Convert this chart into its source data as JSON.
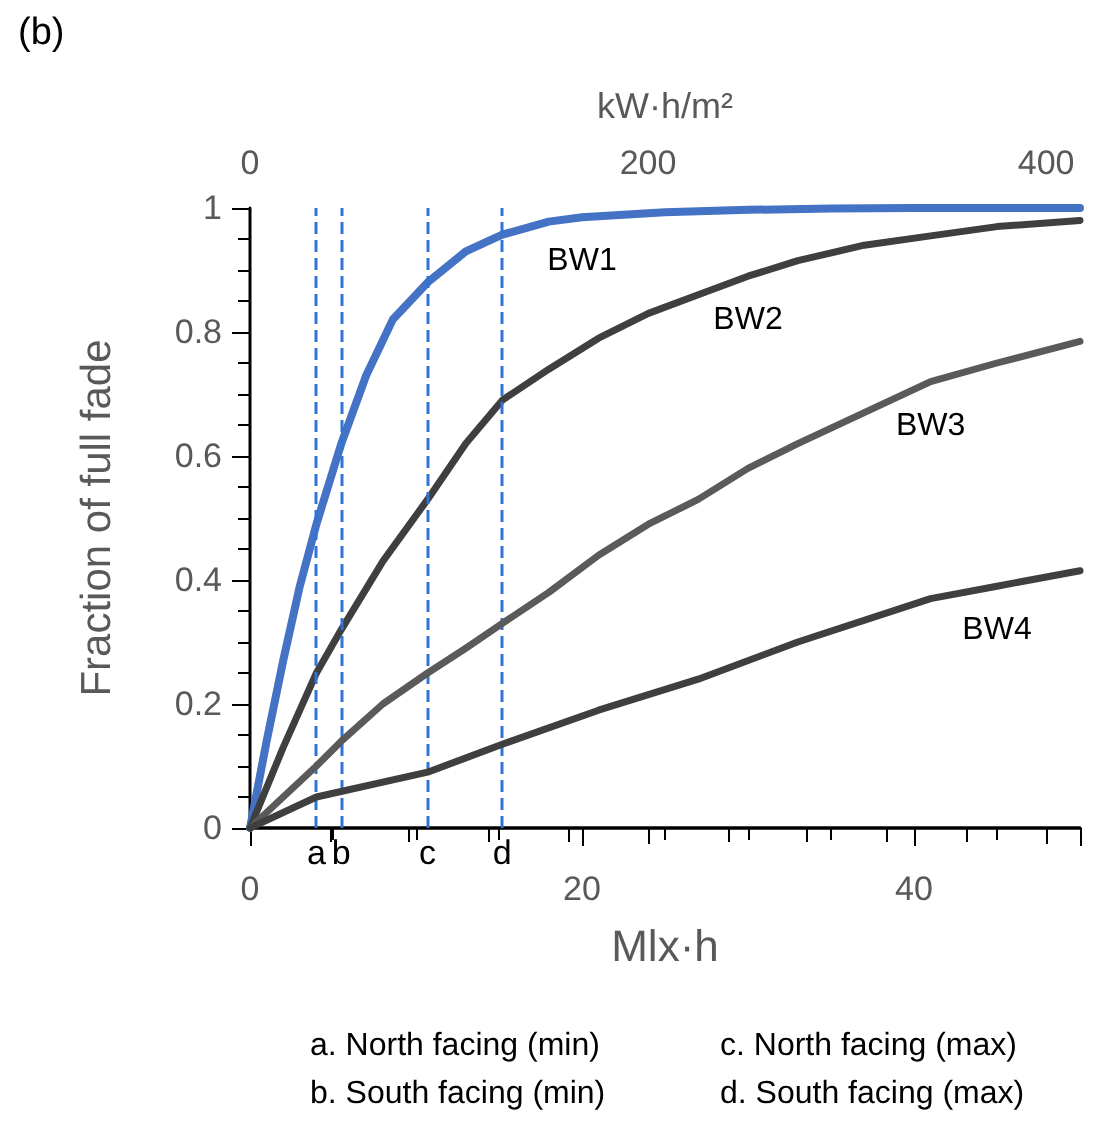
{
  "chart_data": {
    "type": "line",
    "title": "(b)",
    "xlabel": "Mlx·h",
    "ylabel": "Fraction of full fade",
    "x2label": "kW·h/m²",
    "xlim": [
      0,
      50
    ],
    "xticks": [
      0,
      20,
      40
    ],
    "x2lim": [
      0,
      417
    ],
    "x2ticks": [
      0,
      200,
      400
    ],
    "ylim": [
      0,
      1
    ],
    "yticks": [
      0,
      0.2,
      0.4,
      0.6,
      0.8,
      1
    ],
    "grid": false,
    "legend": false,
    "marker": "none",
    "line_style": "solid",
    "series": [
      {
        "name": "BW1",
        "color": "#4472c4",
        "x": [
          0,
          1,
          2,
          3,
          4,
          5.5,
          7,
          8.6,
          10.7,
          13,
          15.2,
          18,
          20,
          25,
          30,
          35,
          40,
          45,
          50
        ],
        "values": [
          0,
          0.14,
          0.27,
          0.39,
          0.49,
          0.62,
          0.73,
          0.82,
          0.88,
          0.93,
          0.957,
          0.978,
          0.985,
          0.993,
          0.997,
          0.999,
          1,
          1,
          1
        ]
      },
      {
        "name": "BW2",
        "color": "#3f3f3f",
        "x": [
          0,
          2,
          4,
          5.5,
          8,
          10.7,
          13,
          15.2,
          18,
          21,
          24,
          27,
          30,
          33,
          37,
          41,
          45,
          50
        ],
        "values": [
          0,
          0.13,
          0.25,
          0.32,
          0.43,
          0.53,
          0.62,
          0.69,
          0.74,
          0.79,
          0.83,
          0.86,
          0.89,
          0.915,
          0.94,
          0.955,
          0.97,
          0.98
        ]
      },
      {
        "name": "BW3",
        "color": "#5a5a5a",
        "x": [
          0,
          2,
          4,
          5.5,
          8,
          10.7,
          13,
          15.2,
          18,
          21,
          24,
          27,
          30,
          33,
          37,
          41,
          45,
          50
        ],
        "values": [
          0,
          0.05,
          0.1,
          0.14,
          0.2,
          0.25,
          0.29,
          0.33,
          0.38,
          0.44,
          0.49,
          0.53,
          0.58,
          0.62,
          0.67,
          0.72,
          0.75,
          0.785
        ]
      },
      {
        "name": "BW4",
        "color": "#3f3f3f",
        "x": [
          0,
          4,
          10.7,
          15.2,
          21,
          27,
          33,
          41,
          45,
          50
        ],
        "values": [
          0,
          0.05,
          0.09,
          0.135,
          0.19,
          0.24,
          0.3,
          0.37,
          0.39,
          0.415
        ]
      }
    ],
    "ref_lines": [
      {
        "axis": "x",
        "value": 4,
        "label": "a",
        "color": "#2e75d6",
        "line_style": "dashed"
      },
      {
        "axis": "x",
        "value": 5.5,
        "label": "b",
        "color": "#2e75d6",
        "line_style": "dashed"
      },
      {
        "axis": "x",
        "value": 10.7,
        "label": "c",
        "color": "#2e75d6",
        "line_style": "dashed"
      },
      {
        "axis": "x",
        "value": 15.2,
        "label": "d",
        "color": "#2e75d6",
        "line_style": "dashed"
      }
    ],
    "annotations": [
      "a. North facing (min)",
      "c. North facing (max)",
      "b. South facing (min)",
      "d. South facing (max)"
    ]
  }
}
